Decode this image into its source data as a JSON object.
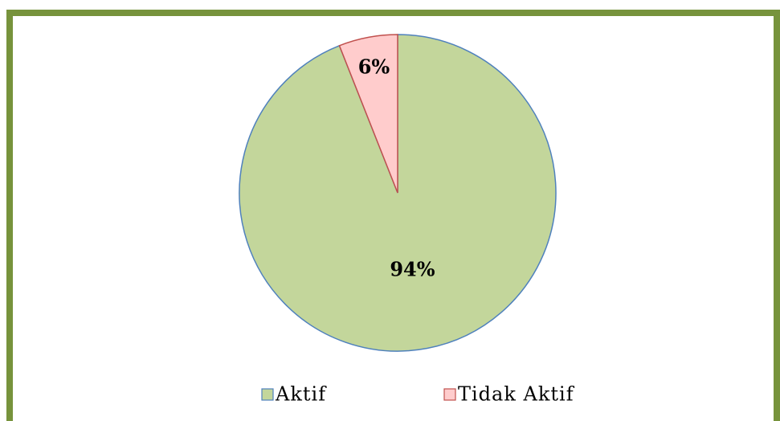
{
  "chart_data": {
    "type": "pie",
    "categories": [
      "Aktif",
      "Tidak Aktif"
    ],
    "values": [
      94,
      6
    ],
    "value_labels": [
      "94%",
      "6%"
    ],
    "colors": [
      "#c3d69b",
      "#ffcccc"
    ],
    "edge_colors": [
      "#4f81bd",
      "#c0504d"
    ],
    "legend": "bottom"
  }
}
